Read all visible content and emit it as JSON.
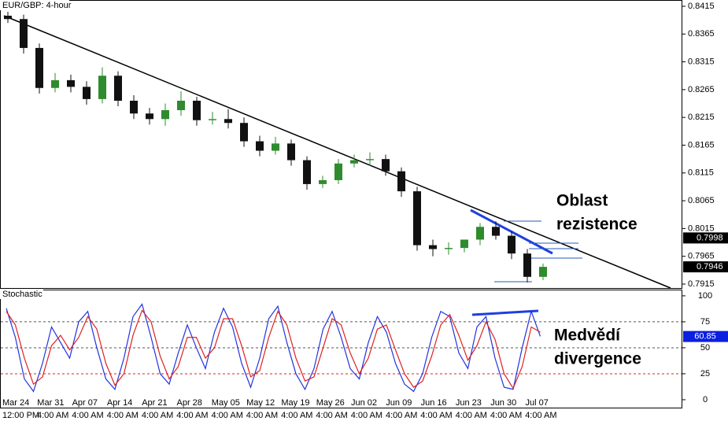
{
  "header": {
    "title": "EUR/GBP: 4-hour"
  },
  "chart_data": [
    {
      "type": "candlestick",
      "up_color": "#2e8b2e",
      "down_color": "#111111",
      "open": [
        0.8398,
        0.8392,
        0.834,
        0.8268,
        0.8282,
        0.827,
        0.8248,
        0.829,
        0.8245,
        0.8222,
        0.8212,
        0.8228,
        0.8245,
        0.821,
        0.8212,
        0.8205,
        0.8172,
        0.8155,
        0.8168,
        0.8138,
        0.8095,
        0.8102,
        0.8132,
        0.8138,
        0.814,
        0.8118,
        0.8082,
        0.7985,
        0.7978,
        0.798,
        0.7995,
        0.8018,
        0.8002,
        0.797,
        0.7928
      ],
      "high": [
        0.8405,
        0.84,
        0.8348,
        0.8295,
        0.8292,
        0.828,
        0.8305,
        0.8298,
        0.8255,
        0.8232,
        0.824,
        0.8262,
        0.8252,
        0.8225,
        0.823,
        0.8215,
        0.8182,
        0.818,
        0.8175,
        0.8145,
        0.811,
        0.814,
        0.8148,
        0.8152,
        0.8148,
        0.8125,
        0.809,
        0.7995,
        0.799,
        0.7992,
        0.8025,
        0.8028,
        0.801,
        0.7978,
        0.7952
      ],
      "low": [
        0.8385,
        0.833,
        0.8258,
        0.826,
        0.826,
        0.8238,
        0.824,
        0.8235,
        0.8212,
        0.8202,
        0.82,
        0.8218,
        0.82,
        0.8202,
        0.8195,
        0.8162,
        0.8145,
        0.8148,
        0.8128,
        0.8085,
        0.8088,
        0.8095,
        0.8125,
        0.8128,
        0.811,
        0.8072,
        0.7975,
        0.7965,
        0.7968,
        0.7972,
        0.7985,
        0.7995,
        0.796,
        0.7918,
        0.7922
      ],
      "close": [
        0.8392,
        0.834,
        0.8268,
        0.8282,
        0.827,
        0.8248,
        0.829,
        0.8245,
        0.8222,
        0.8212,
        0.8228,
        0.8245,
        0.821,
        0.8212,
        0.8205,
        0.8172,
        0.8155,
        0.8168,
        0.8138,
        0.8095,
        0.8102,
        0.8132,
        0.8138,
        0.814,
        0.8118,
        0.8082,
        0.7985,
        0.7978,
        0.798,
        0.7995,
        0.8018,
        0.8002,
        0.797,
        0.7928,
        0.7946
      ],
      "ylim": [
        0.79079,
        0.84263
      ],
      "yticks": [
        0.8415,
        0.8365,
        0.8315,
        0.8265,
        0.8215,
        0.8165,
        0.8115,
        0.8065,
        0.8015,
        0.7965,
        0.7915
      ],
      "price_tags": [
        0.7998,
        0.7946
      ],
      "resistance_label": [
        "Oblast",
        "rezistence"
      ]
    },
    {
      "type": "line",
      "title": "Stochastic",
      "series": [
        {
          "color": "#2233dd",
          "values": [
            88,
            60,
            20,
            8,
            35,
            70,
            55,
            40,
            75,
            85,
            50,
            20,
            10,
            40,
            80,
            92,
            60,
            25,
            15,
            45,
            72,
            50,
            30,
            65,
            88,
            70,
            35,
            12,
            40,
            78,
            90,
            55,
            25,
            10,
            30,
            68,
            85,
            60,
            30,
            20,
            55,
            80,
            65,
            35,
            15,
            8,
            25,
            60,
            85,
            80,
            45,
            30,
            70,
            80,
            40,
            12,
            10,
            50,
            85,
            61
          ]
        },
        {
          "color": "#dd2222",
          "values": [
            85,
            72,
            40,
            15,
            22,
            52,
            62,
            48,
            60,
            80,
            68,
            35,
            14,
            25,
            62,
            86,
            75,
            42,
            20,
            32,
            60,
            60,
            40,
            50,
            78,
            78,
            52,
            22,
            28,
            60,
            85,
            72,
            40,
            18,
            22,
            50,
            78,
            72,
            45,
            25,
            40,
            68,
            72,
            48,
            25,
            12,
            18,
            42,
            72,
            82,
            62,
            38,
            52,
            75,
            58,
            25,
            11,
            32,
            70,
            65
          ]
        }
      ],
      "ylim": [
        -7.6,
        106
      ],
      "yticks": [
        100,
        75,
        50,
        25,
        0
      ],
      "levels": [
        75,
        50,
        25
      ],
      "level_colors": [
        "#555555",
        "#555555",
        "#dd2222"
      ],
      "value_tag": 60.85,
      "divergence_label": [
        "Medvědí",
        "divergence"
      ]
    }
  ],
  "x_axis": {
    "categories": [
      "Mar 24",
      "Mar 31",
      "Apr 07",
      "Apr 14",
      "Apr 21",
      "Apr 28",
      "May 05",
      "May 12",
      "May 19",
      "May 26",
      "Jun 02",
      "Jun 09",
      "Jun 16",
      "Jun 23",
      "Jun 30",
      "Jul 07"
    ],
    "time_labels": [
      "12:00 PM",
      "4:00 AM",
      "4:00 AM",
      "4:00 AM",
      "4:00 AM",
      "4:00 AM",
      "4:00 AM",
      "4:00 AM",
      "4:00 AM",
      "4:00 AM",
      "4:00 AM",
      "4:00 AM",
      "4:00 AM",
      "4:00 AM",
      "4:00 AM",
      "4:00 AM"
    ]
  }
}
